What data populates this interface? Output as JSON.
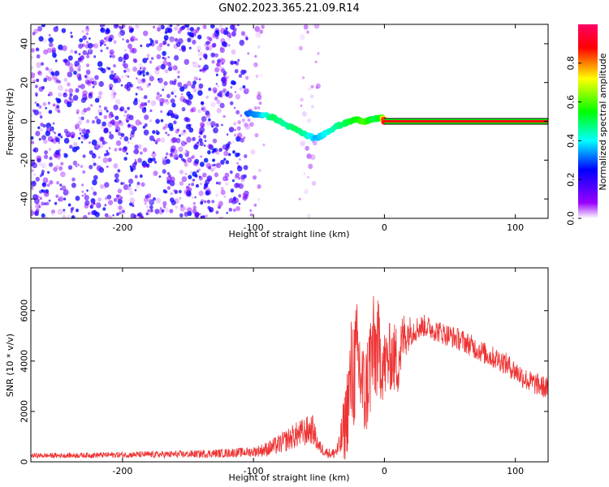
{
  "title": "GN02.2023.365.21.09.R14",
  "chart_data": [
    {
      "type": "heatmap",
      "xlabel": "Height of straight line (km)",
      "ylabel": "Frequency (Hz)",
      "xlim": [
        -270,
        125
      ],
      "ylim": [
        -50,
        50
      ],
      "xticks": [
        -200,
        -100,
        0,
        100
      ],
      "yticks": [
        -40,
        -20,
        0,
        20,
        40
      ],
      "colorbar": {
        "label": "Normalized spectral amplitude",
        "range": [
          0,
          1
        ],
        "ticks": [
          "0.0",
          "0.2",
          "0.4",
          "0.6",
          "0.8"
        ],
        "colors": [
          "#ffffff",
          "#9900ff",
          "#0000ff",
          "#00ffff",
          "#00ff00",
          "#ffff00",
          "#ff0000",
          "#ff0066"
        ]
      },
      "noise_regions": [
        {
          "x": [
            -270,
            -105
          ],
          "amplitude": 0.35
        },
        {
          "x": [
            -105,
            -92
          ],
          "amplitude": 0.12
        },
        {
          "x": [
            -65,
            -50
          ],
          "amplitude": 0.1
        }
      ],
      "ridge": {
        "name": "",
        "x": [
          -105,
          -95,
          -85,
          -75,
          -68,
          -60,
          -52,
          -45,
          -38,
          -30,
          -22,
          -15,
          -8,
          -2,
          0
        ],
        "y": [
          4,
          3.5,
          2,
          -2,
          -4,
          -7,
          -9,
          -6,
          -3,
          -1,
          1,
          0,
          1,
          2,
          0
        ],
        "amplitude": [
          0.3,
          0.35,
          0.5,
          0.45,
          0.5,
          0.45,
          0.35,
          0.4,
          0.45,
          0.5,
          0.55,
          0.6,
          0.5,
          0.55,
          0.9
        ]
      },
      "carrier": {
        "x": [
          0,
          125
        ],
        "y": 0,
        "amplitude": 1.0
      }
    },
    {
      "type": "line",
      "xlabel": "Height of straight line (km)",
      "ylabel": "SNR (10 * v/v)",
      "xlim": [
        -270,
        125
      ],
      "ylim": [
        0,
        7700
      ],
      "xticks": [
        -200,
        -100,
        0,
        100
      ],
      "yticks": [
        0,
        2000,
        4000,
        6000
      ],
      "color": "#ee3333",
      "series": [
        {
          "name": "",
          "x": [
            -270,
            -250,
            -200,
            -150,
            -120,
            -100,
            -90,
            -80,
            -70,
            -60,
            -55,
            -50,
            -45,
            -40,
            -35,
            -30,
            -25,
            -20,
            -15,
            -10,
            -5,
            0,
            5,
            10,
            15,
            20,
            25,
            30,
            40,
            50,
            60,
            70,
            80,
            90,
            100,
            110,
            125
          ],
          "y": [
            250,
            250,
            280,
            300,
            350,
            400,
            500,
            700,
            1000,
            1200,
            1300,
            600,
            400,
            300,
            500,
            1500,
            3500,
            4000,
            2500,
            4200,
            4500,
            3800,
            4200,
            4000,
            5000,
            5200,
            5300,
            5400,
            5200,
            5000,
            4800,
            4500,
            4200,
            4000,
            3600,
            3200,
            2900
          ],
          "noise": [
            100,
            100,
            120,
            150,
            180,
            200,
            300,
            400,
            500,
            600,
            600,
            300,
            200,
            200,
            400,
            1500,
            2500,
            2500,
            1800,
            2500,
            2000,
            1500,
            1400,
            1500,
            1000,
            600,
            500,
            450,
            450,
            450,
            450,
            450,
            450,
            450,
            450,
            450,
            450
          ]
        }
      ]
    }
  ]
}
